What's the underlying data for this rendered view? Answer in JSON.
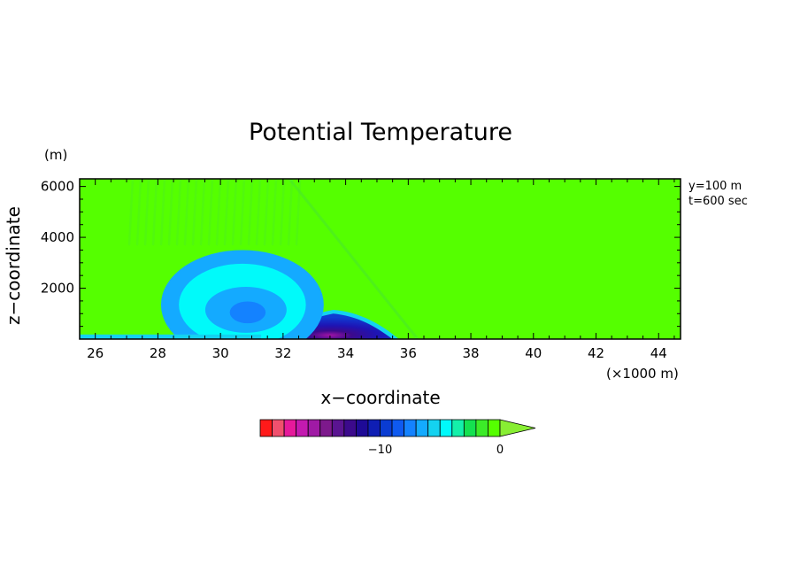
{
  "chart_data": {
    "type": "heatmap",
    "title": "Potential Temperature",
    "xlabel": "x−coordinate",
    "ylabel": "z−coordinate",
    "x_unit": "(×1000 m)",
    "y_unit": "(m)",
    "annotations": [
      "y=100 m",
      "t=600 sec"
    ],
    "xlim": [
      25.5,
      44.7
    ],
    "ylim": [
      0,
      6300
    ],
    "x_ticks": [
      26,
      28,
      30,
      32,
      34,
      36,
      38,
      40,
      42,
      44
    ],
    "y_ticks": [
      2000,
      4000,
      6000
    ],
    "background_color": "#55ff00",
    "colorbar": {
      "colors": [
        "#ff1a1a",
        "#f0506e",
        "#e6199b",
        "#c31ab0",
        "#a01aa5",
        "#7d198c",
        "#5a1491",
        "#3c0a8c",
        "#1e0a96",
        "#0f1eb4",
        "#0a3cd2",
        "#0f5af0",
        "#1482ff",
        "#14aaff",
        "#14d2f0",
        "#00fafa",
        "#14f0aa",
        "#14e150",
        "#3ceb28",
        "#55ff00"
      ],
      "extend_color": "#88ee33",
      "tick_labels": [
        "−10",
        "0"
      ],
      "tick_values": [
        -10,
        0
      ],
      "vmin": -20,
      "vmax": 0
    }
  }
}
